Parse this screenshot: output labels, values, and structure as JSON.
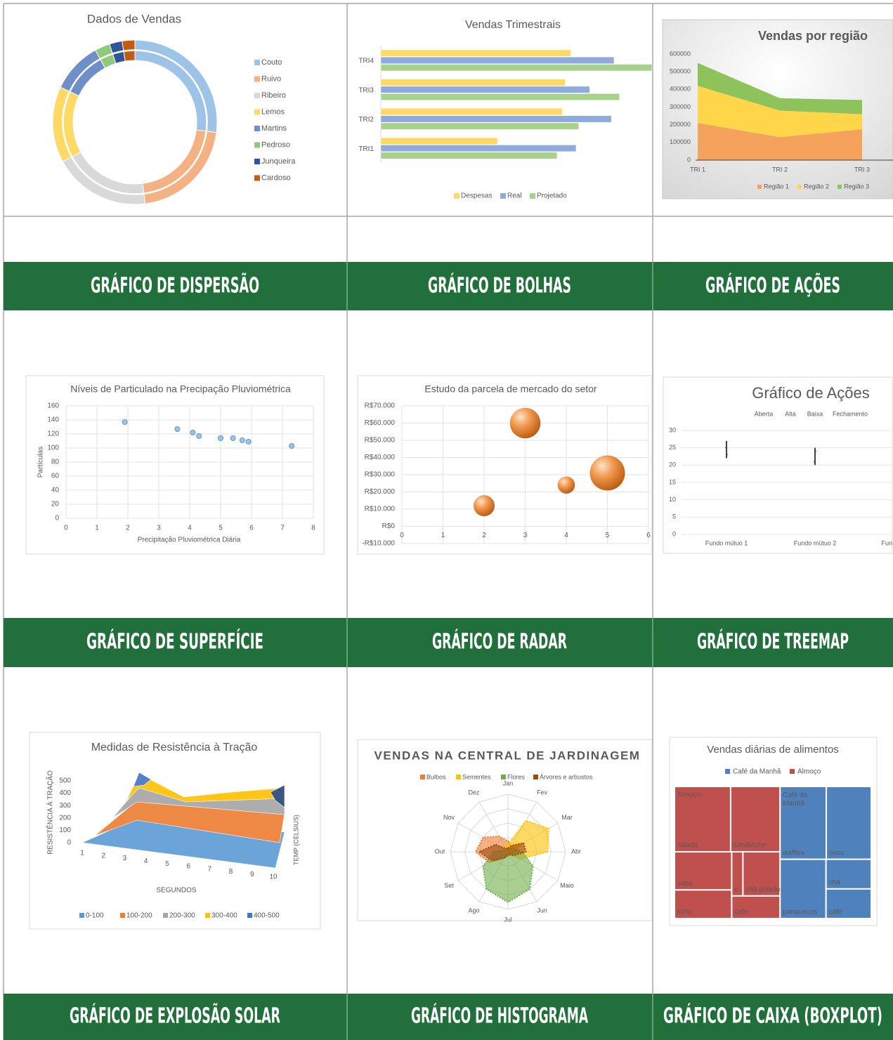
{
  "headings": [
    "GRÁFICO DE DISPERSÃO",
    "GRÁFICO DE BOLHAS",
    "GRÁFICO DE AÇÕES",
    "GRÁFICO DE SUPERFÍCIE",
    "GRÁFICO DE RADAR",
    "GRÁFICO DE TREEMAP",
    "GRÁFICO DE EXPLOSÃO SOLAR",
    "GRÁFICO DE HISTOGRAMA",
    "GRÁFICO DE CAIXA (BOXPLOT)"
  ],
  "chart_data": [
    {
      "type": "donut",
      "title": "Dados de Vendas",
      "categories": [
        "Couto",
        "Ruivo",
        "Ribeiro",
        "Lemos",
        "Martins",
        "Pedroso",
        "Junqueira",
        "Cardoso"
      ],
      "values": [
        27,
        21,
        19,
        15,
        10,
        3,
        2.5,
        2.5
      ],
      "colors": [
        "#9dc3e6",
        "#f4b183",
        "#d9d9d9",
        "#ffd966",
        "#6f8fc9",
        "#8fc97a",
        "#2f5597",
        "#c55a11"
      ]
    },
    {
      "type": "hbar",
      "title": "Vendas Trimestrais",
      "categories": [
        "TRI1",
        "TRI2",
        "TRI3",
        "TRI4"
      ],
      "xlim": [
        0,
        100
      ],
      "series": [
        {
          "name": "Despesas",
          "color": "#ffd966",
          "values": [
            43,
            67,
            68,
            70
          ]
        },
        {
          "name": "Real",
          "color": "#8faadc",
          "values": [
            72,
            85,
            77,
            86
          ]
        },
        {
          "name": "Projetado",
          "color": "#a9d18e",
          "values": [
            65,
            73,
            88,
            100
          ]
        }
      ]
    },
    {
      "type": "stacked_area",
      "title": "Vendas por região",
      "categories": [
        "TRI 1",
        "TRI 2",
        "TRI 3"
      ],
      "ylim": [
        0,
        600000
      ],
      "yticks": [
        0,
        100000,
        200000,
        300000,
        400000,
        500000,
        600000
      ],
      "series": [
        {
          "name": "Região 1",
          "color": "#f4a25c",
          "values": [
            210000,
            130000,
            175000
          ]
        },
        {
          "name": "Região 2",
          "color": "#ffd54a",
          "values": [
            210000,
            150000,
            85000
          ]
        },
        {
          "name": "Região 3",
          "color": "#8dc35a",
          "values": [
            130000,
            70000,
            80000
          ]
        }
      ]
    },
    {
      "type": "scatter",
      "title": "Níveis de Particulado na Precipação Pluviométrica",
      "x_label": "Precipitação Pluviométrica Diária",
      "y_label": "Partículas",
      "x": [
        1.9,
        3.6,
        4.1,
        4.3,
        5,
        5.4,
        5.7,
        5.9,
        7.3
      ],
      "values": [
        137,
        127,
        122,
        117,
        114,
        114,
        111,
        109,
        103
      ],
      "xlim": [
        0,
        8
      ],
      "xticks": [
        0,
        1,
        2,
        3,
        4,
        5,
        6,
        7,
        8
      ],
      "ylim": [
        0,
        160
      ],
      "yticks": [
        0,
        20,
        40,
        60,
        80,
        100,
        120,
        140,
        160
      ],
      "color": "#9dc3e6",
      "grid": true
    },
    {
      "type": "bubble",
      "title": "Estudo da parcela de mercado do setor",
      "x": [
        2,
        3,
        4,
        5
      ],
      "values": [
        12000,
        60000,
        24000,
        31000
      ],
      "sizes": [
        9,
        19,
        6,
        25
      ],
      "xlim": [
        0,
        6
      ],
      "xticks": [
        0,
        1,
        2,
        3,
        4,
        5,
        6
      ],
      "ylim": [
        -10000,
        70000
      ],
      "yticks": [
        {
          "value": -10000,
          "label": "-R$10.000"
        },
        {
          "value": 0,
          "label": "R$0"
        },
        {
          "value": 10000,
          "label": "R$10.000"
        },
        {
          "value": 20000,
          "label": "R$20.000"
        },
        {
          "value": 30000,
          "label": "R$30.000"
        },
        {
          "value": 40000,
          "label": "R$40.000"
        },
        {
          "value": 50000,
          "label": "R$50.000"
        },
        {
          "value": 60000,
          "label": "R$60.000"
        },
        {
          "value": 70000,
          "label": "R$70.000"
        }
      ],
      "color": "#e8822e",
      "grid": true
    },
    {
      "type": "stock",
      "title": "Gráfico de Ações",
      "categories": [
        "Fundo mútuo 1",
        "Fundo mútuo 2",
        "Fun"
      ],
      "ylim": [
        0,
        30
      ],
      "yticks": [
        0,
        5,
        10,
        15,
        20,
        25,
        30
      ],
      "color": "#404040",
      "series": [
        {
          "name": "Aberta",
          "values": [
            25,
            21,
            null
          ]
        },
        {
          "name": "Alta",
          "values": [
            27,
            25,
            null
          ]
        },
        {
          "name": "Baixa",
          "values": [
            22,
            20,
            null
          ]
        },
        {
          "name": "Fechamento",
          "values": [
            23,
            24,
            null
          ]
        }
      ]
    },
    {
      "type": "surface",
      "title": "Medidas de Resistência à Tração",
      "x_label": "SEGUNDOS",
      "y_label": "RESISTÊNCIA À TRAÇÃO",
      "z_label": "TEMP (CELSIUS)",
      "xlim": [
        1,
        10
      ],
      "xticks": [
        1,
        2,
        3,
        4,
        5,
        6,
        7,
        8,
        9,
        10
      ],
      "ylim": [
        0,
        500
      ],
      "yticks": [
        0,
        100,
        200,
        300,
        400,
        500
      ],
      "legend": [
        {
          "name": "0-100",
          "color": "#5b9bd5"
        },
        {
          "name": "100-200",
          "color": "#ed7d31"
        },
        {
          "name": "200-300",
          "color": "#a5a5a5"
        },
        {
          "name": "300-400",
          "color": "#ffc000"
        },
        {
          "name": "400-500",
          "color": "#4472c4"
        }
      ]
    },
    {
      "type": "radar",
      "title": "VENDAS NA CENTRAL DE JARDINAGEM",
      "categories": [
        "Jan",
        "Fev",
        "Mar",
        "Abr",
        "Maio",
        "Jun",
        "Jul",
        "Ago",
        "Set",
        "Out",
        "Nov",
        "Dez"
      ],
      "rlim": [
        0,
        80
      ],
      "series": [
        {
          "name": "Bulbos",
          "color": "#ed7d31",
          "values": [
            15,
            10,
            20,
            10,
            5,
            5,
            5,
            10,
            30,
            45,
            40,
            25
          ]
        },
        {
          "name": "Sementes",
          "color": "#ffc000",
          "values": [
            10,
            50,
            65,
            55,
            20,
            5,
            5,
            5,
            5,
            5,
            5,
            10
          ]
        },
        {
          "name": "Flores",
          "color": "#70ad47",
          "values": [
            5,
            5,
            10,
            20,
            40,
            60,
            70,
            60,
            40,
            20,
            5,
            5
          ]
        },
        {
          "name": "Árvores e arbustos",
          "color": "#9e480e",
          "values": [
            5,
            10,
            25,
            25,
            10,
            5,
            5,
            10,
            25,
            40,
            20,
            5
          ]
        }
      ]
    },
    {
      "type": "treemap",
      "title": "Vendas diárias de alimentos",
      "groups": [
        {
          "name": "Café da Manhã",
          "color": "#4f81bd",
          "labels": [
            "waffles",
            "ovos",
            "panquecas",
            "chá",
            "café"
          ],
          "values": [
            68,
            66,
            55,
            27,
            27
          ]
        },
        {
          "name": "Almoço",
          "color": "#c0504d",
          "labels": [
            "salada",
            "sanduíche",
            "sopa",
            "torta",
            "c...",
            "chá gelado",
            "café"
          ],
          "values": [
            74,
            65,
            44,
            33,
            10,
            33,
            22
          ]
        }
      ]
    }
  ]
}
